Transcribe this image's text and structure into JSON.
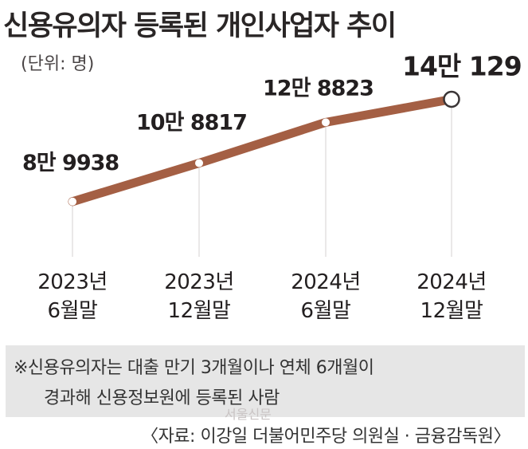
{
  "chart_data": {
    "type": "line",
    "title": "신용유의자 등록된 개인사업자 추이",
    "unit": "(단위: 명)",
    "categories": [
      [
        "2023년",
        "6월말"
      ],
      [
        "2023년",
        "12월말"
      ],
      [
        "2024년",
        "6월말"
      ],
      [
        "2024년",
        "12월말"
      ]
    ],
    "values": [
      89938,
      108817,
      128823,
      140129
    ],
    "value_labels": [
      "8만 9938",
      "10만 8817",
      "12만 8823",
      "14만 129"
    ],
    "ylim": [
      75000,
      145000
    ],
    "line_color": "#a45f44",
    "grid": false,
    "legend": "none"
  },
  "note": {
    "line1": "※신용유의자는 대출 만기 3개월이나 연체 6개월이",
    "line2": "경과해 신용정보원에 등록된 사람"
  },
  "watermark": "서울신문",
  "source": "〈자료: 이강일 더불어민주당 의원실 · 금융감독원〉"
}
